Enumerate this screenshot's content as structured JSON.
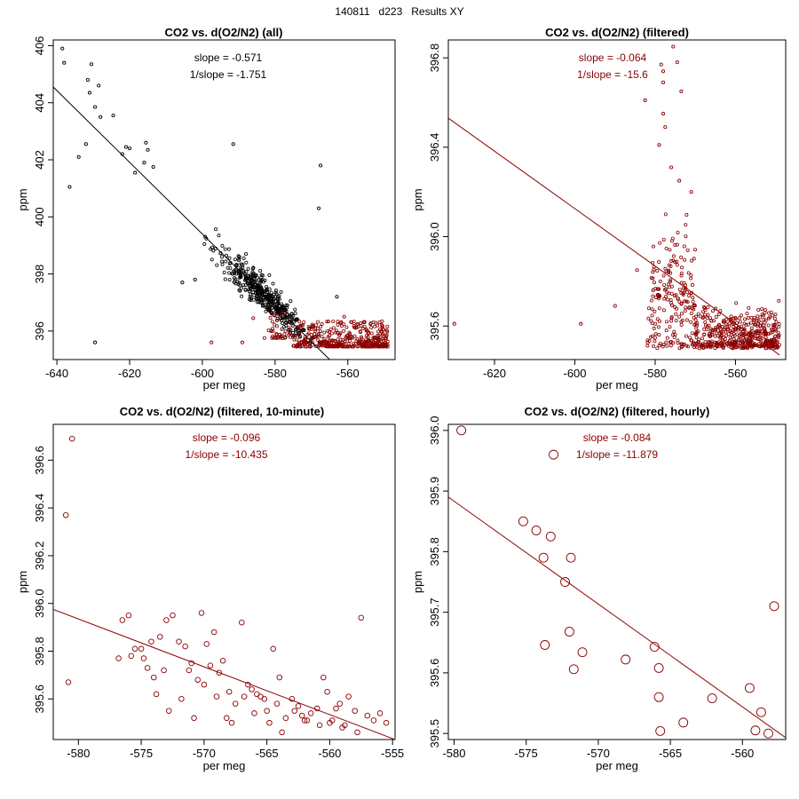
{
  "page": {
    "title": "140811   d223   Results XY"
  },
  "colors": {
    "all": "#000000",
    "filtered": "#8b0000",
    "axis": "#000000"
  },
  "chart_data": [
    {
      "id": "all",
      "type": "scatter",
      "title": "CO2 vs. d(O2/N2) (all)",
      "xlabel": "per meg",
      "ylabel": "ppm",
      "xlim": [
        -641,
        -547
      ],
      "ylim": [
        395.0,
        406.2
      ],
      "xticks": [
        -640,
        -620,
        -600,
        -580,
        -560
      ],
      "yticks": [
        396,
        398,
        400,
        402,
        404,
        406
      ],
      "annotations": [
        "slope = -0.571",
        "1/slope = -1.751"
      ],
      "annotation_color": "#000000",
      "fit": {
        "slope": -0.571,
        "points": [
          [
            -641,
            404.55
          ],
          [
            -565,
            395.0
          ]
        ],
        "color": "#000000"
      },
      "series": [
        {
          "name": "all",
          "color": "#000000",
          "marker_size": 1.6,
          "gen": "cloud_all"
        },
        {
          "name": "filtered",
          "color": "#8b0000",
          "marker_size": 1.6,
          "gen": "cloud_filtered"
        }
      ],
      "points": [
        [
          -638.5,
          405.9
        ],
        [
          -638,
          405.4
        ],
        [
          -636.5,
          401.05
        ],
        [
          -634,
          402.1
        ],
        [
          -632,
          402.55
        ],
        [
          -631.5,
          404.8
        ],
        [
          -631,
          404.35
        ],
        [
          -630.5,
          405.35
        ],
        [
          -629.5,
          403.85
        ],
        [
          -628.5,
          404.6
        ],
        [
          -628,
          403.5
        ],
        [
          -624.5,
          403.55
        ],
        [
          -622,
          402.2
        ],
        [
          -621,
          402.45
        ],
        [
          -620,
          402.4
        ],
        [
          -618.5,
          401.55
        ],
        [
          -615.5,
          402.6
        ],
        [
          -615,
          402.35
        ],
        [
          -613.5,
          401.75
        ],
        [
          -616,
          401.9
        ],
        [
          -591.5,
          402.55
        ],
        [
          -567.5,
          401.8
        ],
        [
          -568,
          400.3
        ],
        [
          -629.5,
          395.6
        ],
        [
          -605.5,
          397.7
        ],
        [
          -602,
          397.8
        ],
        [
          -597.5,
          395.6
        ],
        [
          -589,
          395.6
        ],
        [
          -586,
          396.45
        ],
        [
          -572.5,
          396.2
        ],
        [
          -563,
          397.2
        ],
        [
          -561,
          396.5
        ],
        [
          -555,
          395.7
        ]
      ]
    },
    {
      "id": "filtered",
      "type": "scatter",
      "title": "CO2 vs. d(O2/N2) (filtered)",
      "xlabel": "per meg",
      "ylabel": "ppm",
      "xlim": [
        -631.5,
        -547.5
      ],
      "ylim": [
        395.45,
        396.88
      ],
      "xticks": [
        -620,
        -600,
        -580,
        -560
      ],
      "yticks": [
        395.6,
        396.0,
        396.4,
        396.8
      ],
      "annotations": [
        "slope = -0.064",
        "1/slope = -15.6"
      ],
      "annotation_color": "#8b0000",
      "fit": {
        "slope": -0.064,
        "points": [
          [
            -631.5,
            396.53
          ],
          [
            -549,
            395.47
          ]
        ],
        "color": "#8b0000"
      },
      "series": [
        {
          "name": "filtered",
          "color": "#8b0000",
          "marker_size": 1.6,
          "gen": "cloud_filtered_zoom"
        }
      ],
      "points": [
        [
          -630,
          395.61
        ],
        [
          -598.5,
          395.61
        ],
        [
          -590,
          395.69
        ],
        [
          -584.5,
          395.85
        ],
        [
          -575.5,
          396.85
        ],
        [
          -578.5,
          396.77
        ],
        [
          -578,
          396.74
        ],
        [
          -574.5,
          396.78
        ],
        [
          -578,
          396.69
        ],
        [
          -573.5,
          396.65
        ],
        [
          -582.5,
          396.61
        ],
        [
          -578,
          396.55
        ],
        [
          -577.5,
          396.49
        ],
        [
          -579,
          396.41
        ],
        [
          -576,
          396.31
        ],
        [
          -574,
          396.25
        ],
        [
          -571,
          396.2
        ]
      ]
    },
    {
      "id": "tenmin",
      "type": "scatter",
      "title": "CO2 vs. d(O2/N2) (filtered, 10-minute)",
      "xlabel": "per meg",
      "ylabel": "ppm",
      "xlim": [
        -582,
        -554.8
      ],
      "ylim": [
        395.43,
        396.75
      ],
      "xticks": [
        -580,
        -575,
        -570,
        -565,
        -560,
        -555
      ],
      "yticks": [
        395.6,
        395.8,
        396.0,
        396.2,
        396.4,
        396.6
      ],
      "annotations": [
        "slope = -0.096",
        "1/slope = -10.435"
      ],
      "annotation_color": "#8b0000",
      "fit": {
        "slope": -0.096,
        "points": [
          [
            -582,
            395.975
          ],
          [
            -554.8,
            395.43
          ]
        ],
        "color": "#8b0000"
      },
      "series": [
        {
          "name": "10-minute",
          "color": "#8b0000",
          "marker_size": 2.8
        }
      ],
      "points": [
        [
          -581,
          396.37
        ],
        [
          -580.5,
          396.69
        ],
        [
          -580.8,
          395.67
        ],
        [
          -576.5,
          395.93
        ],
        [
          -576,
          395.95
        ],
        [
          -575.5,
          395.81
        ],
        [
          -575,
          395.81
        ],
        [
          -574.5,
          395.73
        ],
        [
          -574,
          395.69
        ],
        [
          -573.5,
          395.86
        ],
        [
          -573,
          395.93
        ],
        [
          -572.5,
          395.95
        ],
        [
          -572,
          395.84
        ],
        [
          -571.5,
          395.82
        ],
        [
          -571,
          395.75
        ],
        [
          -570.5,
          395.68
        ],
        [
          -570,
          395.66
        ],
        [
          -569.5,
          395.74
        ],
        [
          -569,
          395.61
        ],
        [
          -568.5,
          395.76
        ],
        [
          -568,
          395.63
        ],
        [
          -567.5,
          395.58
        ],
        [
          -567,
          395.92
        ],
        [
          -566.5,
          395.66
        ],
        [
          -566,
          395.54
        ],
        [
          -565.5,
          395.61
        ],
        [
          -565,
          395.55
        ],
        [
          -564.5,
          395.81
        ],
        [
          -564,
          395.69
        ],
        [
          -563.5,
          395.52
        ],
        [
          -563,
          395.6
        ],
        [
          -562.5,
          395.57
        ],
        [
          -562,
          395.51
        ],
        [
          -561.5,
          395.54
        ],
        [
          -561,
          395.56
        ],
        [
          -560.5,
          395.69
        ],
        [
          -560,
          395.5
        ],
        [
          -559.5,
          395.56
        ],
        [
          -559,
          395.48
        ],
        [
          -558.5,
          395.61
        ],
        [
          -558,
          395.55
        ],
        [
          -557.5,
          395.94
        ],
        [
          -557,
          395.53
        ],
        [
          -556.5,
          395.51
        ],
        [
          -556,
          395.54
        ],
        [
          -555.5,
          395.5
        ],
        [
          -574.8,
          395.77
        ],
        [
          -573.8,
          395.62
        ],
        [
          -572.8,
          395.55
        ],
        [
          -571.8,
          395.6
        ],
        [
          -570.8,
          395.52
        ],
        [
          -569.8,
          395.83
        ],
        [
          -568.8,
          395.71
        ],
        [
          -567.8,
          395.5
        ],
        [
          -566.8,
          395.61
        ],
        [
          -565.8,
          395.62
        ],
        [
          -564.8,
          395.5
        ],
        [
          -563.8,
          395.46
        ],
        [
          -562.8,
          395.55
        ],
        [
          -561.8,
          395.51
        ],
        [
          -560.8,
          395.49
        ],
        [
          -559.8,
          395.51
        ],
        [
          -558.8,
          395.49
        ],
        [
          -557.8,
          395.46
        ],
        [
          -576.8,
          395.77
        ],
        [
          -575.8,
          395.78
        ],
        [
          -574.2,
          395.84
        ],
        [
          -573.2,
          395.72
        ],
        [
          -571.2,
          395.72
        ],
        [
          -570.2,
          395.96
        ],
        [
          -569.2,
          395.88
        ],
        [
          -568.2,
          395.52
        ],
        [
          -566.2,
          395.64
        ],
        [
          -565.2,
          395.6
        ],
        [
          -564.2,
          395.58
        ],
        [
          -562.2,
          395.53
        ],
        [
          -560.2,
          395.63
        ],
        [
          -559.2,
          395.58
        ]
      ]
    },
    {
      "id": "hourly",
      "type": "scatter",
      "title": "CO2 vs. d(O2/N2) (filtered, hourly)",
      "xlabel": "per meg",
      "ylabel": "ppm",
      "xlim": [
        -580.4,
        -557
      ],
      "ylim": [
        395.49,
        396.01
      ],
      "xticks": [
        -580,
        -575,
        -570,
        -565,
        -560
      ],
      "yticks": [
        395.5,
        395.6,
        395.7,
        395.8,
        395.9,
        396.0
      ],
      "annotations": [
        "slope = -0.084",
        "1/slope = -11.879"
      ],
      "annotation_color": "#8b0000",
      "fit": {
        "slope": -0.084,
        "points": [
          [
            -580.4,
            395.89
          ],
          [
            -557,
            395.493
          ]
        ],
        "color": "#8b0000"
      },
      "series": [
        {
          "name": "hourly",
          "color": "#8b0000",
          "marker_size": 5
        }
      ],
      "points": [
        [
          -579.5,
          396.0
        ],
        [
          -575.2,
          395.85
        ],
        [
          -574.3,
          395.835
        ],
        [
          -573.1,
          395.96
        ],
        [
          -573.3,
          395.825
        ],
        [
          -573.8,
          395.79
        ],
        [
          -571.9,
          395.79
        ],
        [
          -572.3,
          395.75
        ],
        [
          -572,
          395.668
        ],
        [
          -573.7,
          395.646
        ],
        [
          -571.1,
          395.634
        ],
        [
          -571.7,
          395.606
        ],
        [
          -568.1,
          395.622
        ],
        [
          -566.1,
          395.643
        ],
        [
          -565.8,
          395.608
        ],
        [
          -565.8,
          395.56
        ],
        [
          -565.7,
          395.504
        ],
        [
          -564.1,
          395.518
        ],
        [
          -562.1,
          395.558
        ],
        [
          -559.5,
          395.575
        ],
        [
          -559.1,
          395.505
        ],
        [
          -558.7,
          395.535
        ],
        [
          -558.2,
          395.5
        ],
        [
          -557.8,
          395.71
        ]
      ]
    }
  ]
}
